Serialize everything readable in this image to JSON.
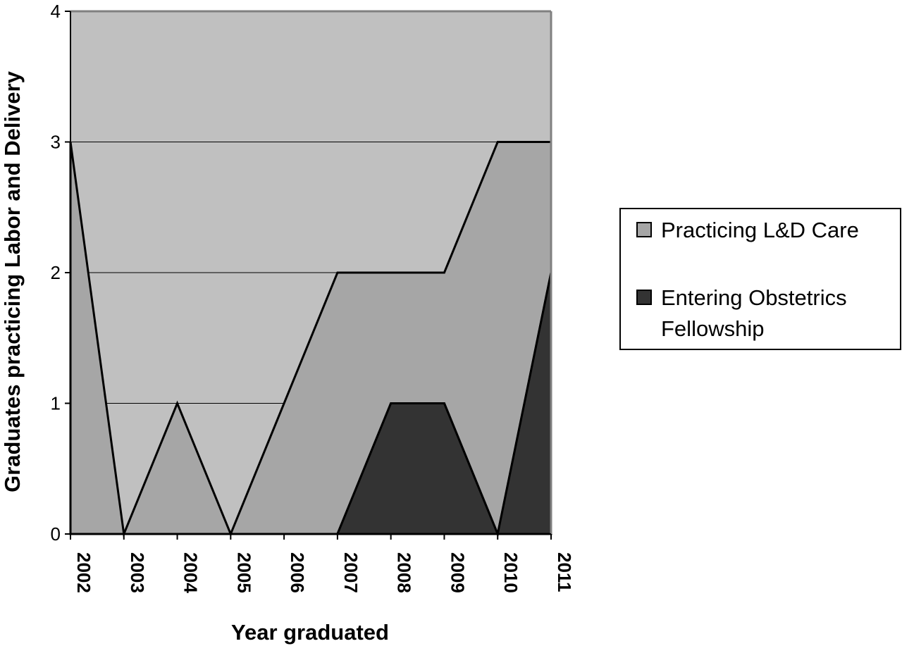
{
  "chart_data": {
    "type": "area",
    "stacked": true,
    "x": [
      "2002",
      "2003",
      "2004",
      "2005",
      "2006",
      "2007",
      "2008",
      "2009",
      "2010",
      "2011"
    ],
    "xlabel": "Year graduated",
    "ylabel": "Graduates practicing Labor and Delivery",
    "ylim": [
      0,
      4
    ],
    "yticks": [
      "0",
      "1",
      "2",
      "3",
      "4"
    ],
    "grid": true,
    "legend_position": "right",
    "series": [
      {
        "name": "Practicing L&D Care",
        "values": [
          3,
          0,
          1,
          0,
          1,
          2,
          1,
          1,
          3,
          1
        ],
        "color": "#a6a6a6"
      },
      {
        "name": "Entering Obstetrics Fellowship",
        "values": [
          0,
          0,
          0,
          0,
          0,
          0,
          1,
          1,
          0,
          2
        ],
        "color": "#333333"
      }
    ],
    "plot_background": "#c0c0c0"
  },
  "legend": {
    "items": [
      {
        "lines": [
          "Practicing L&D Care"
        ]
      },
      {
        "lines": [
          "Entering Obstetrics",
          "Fellowship"
        ]
      }
    ]
  }
}
